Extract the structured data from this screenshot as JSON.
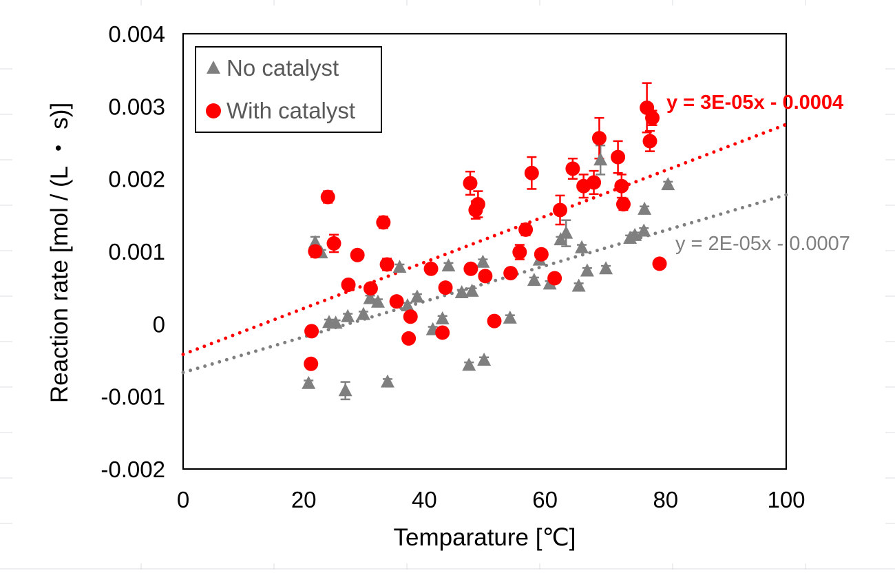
{
  "chart_data": {
    "type": "scatter",
    "title": "",
    "xlabel": "Temparature [℃]",
    "ylabel": "Reaction rate [mol / (L ・ s)]",
    "xlim": [
      0,
      100
    ],
    "ylim": [
      -0.002,
      0.004
    ],
    "x_ticks": [
      {
        "value": 0,
        "label": "0"
      },
      {
        "value": 20,
        "label": "20"
      },
      {
        "value": 40,
        "label": "40"
      },
      {
        "value": 60,
        "label": "60"
      },
      {
        "value": 80,
        "label": "80"
      },
      {
        "value": 100,
        "label": "100"
      }
    ],
    "y_ticks": [
      {
        "value": -0.002,
        "label": "-0.002"
      },
      {
        "value": -0.001,
        "label": "-0.001"
      },
      {
        "value": 0,
        "label": "0"
      },
      {
        "value": 0.001,
        "label": "0.001"
      },
      {
        "value": 0.002,
        "label": "0.002"
      },
      {
        "value": 0.003,
        "label": "0.003"
      },
      {
        "value": 0.004,
        "label": "0.004"
      }
    ],
    "grid": false,
    "legend": {
      "position": "top-left",
      "entries": [
        "No catalyst",
        "With catalyst"
      ]
    },
    "series": [
      {
        "name": "No catalyst",
        "marker": "triangle",
        "color": "#7f7f7f",
        "trendline": {
          "label": "y = 2E-05x - 0.0007",
          "slope": 2.45e-05,
          "intercept": -0.00067,
          "bold": false
        },
        "points": [
          {
            "x": 20.8,
            "y": -0.00082,
            "err": 4e-05
          },
          {
            "x": 21.9,
            "y": 0.00112,
            "err": 8e-05
          },
          {
            "x": 22.9,
            "y": 0.00098,
            "err": 4e-05
          },
          {
            "x": 24.2,
            "y": 2e-05,
            "err": 4e-05
          },
          {
            "x": 25.3,
            "y": 1e-05,
            "err": 4e-05
          },
          {
            "x": 26.9,
            "y": -0.00092,
            "err": 0.00012
          },
          {
            "x": 27.3,
            "y": 0.0001,
            "err": 4e-05
          },
          {
            "x": 29.9,
            "y": 0.00013,
            "err": 4e-05
          },
          {
            "x": 31.0,
            "y": 0.00035,
            "err": 4e-05
          },
          {
            "x": 32.3,
            "y": 0.0003,
            "err": 4e-05
          },
          {
            "x": 33.9,
            "y": -0.0008,
            "err": 4e-05
          },
          {
            "x": 35.9,
            "y": 0.00078,
            "err": 4e-05
          },
          {
            "x": 37.2,
            "y": 0.00025,
            "err": 4e-05
          },
          {
            "x": 38.8,
            "y": 0.00037,
            "err": 4e-05
          },
          {
            "x": 41.4,
            "y": -8e-05,
            "err": 4e-05
          },
          {
            "x": 43.0,
            "y": 7e-05,
            "err": 4e-05
          },
          {
            "x": 44.0,
            "y": 0.0008,
            "err": 4e-05
          },
          {
            "x": 46.2,
            "y": 0.00043,
            "err": 4e-05
          },
          {
            "x": 47.4,
            "y": -0.00057,
            "err": 4e-05
          },
          {
            "x": 47.9,
            "y": 0.00045,
            "err": 4e-05
          },
          {
            "x": 49.7,
            "y": 0.00085,
            "err": 4e-05
          },
          {
            "x": 49.9,
            "y": -0.0005,
            "err": 4e-05
          },
          {
            "x": 54.2,
            "y": 8e-05,
            "err": 4e-05
          },
          {
            "x": 58.2,
            "y": 0.0006,
            "err": 4e-05
          },
          {
            "x": 59.1,
            "y": 0.00088,
            "err": 4e-05
          },
          {
            "x": 60.8,
            "y": 0.00055,
            "err": 4e-05
          },
          {
            "x": 62.6,
            "y": 0.00116,
            "err": 4e-05
          },
          {
            "x": 63.5,
            "y": 0.00125,
            "err": 0.00018
          },
          {
            "x": 65.6,
            "y": 0.00052,
            "err": 4e-05
          },
          {
            "x": 66.1,
            "y": 0.00105,
            "err": 4e-05
          },
          {
            "x": 67.0,
            "y": 0.00073,
            "err": 4e-05
          },
          {
            "x": 69.2,
            "y": 0.00226,
            "err": 0.0002
          },
          {
            "x": 70.1,
            "y": 0.00076,
            "err": 4e-05
          },
          {
            "x": 74.1,
            "y": 0.00118,
            "err": 4e-05
          },
          {
            "x": 74.9,
            "y": 0.00122,
            "err": 4e-05
          },
          {
            "x": 76.4,
            "y": 0.00128,
            "err": 4e-05
          },
          {
            "x": 76.5,
            "y": 0.00158,
            "err": 4e-05
          },
          {
            "x": 80.4,
            "y": 0.00192,
            "err": 4e-05
          }
        ]
      },
      {
        "name": "With catalyst",
        "marker": "circle",
        "color": "#ff0000",
        "trendline": {
          "label": "y = 3E-05x - 0.0004",
          "slope": 3.17e-05,
          "intercept": -0.00042,
          "bold": true
        },
        "points": [
          {
            "x": 21.2,
            "y": -0.00055,
            "err": 0
          },
          {
            "x": 21.3,
            "y": -0.0001,
            "err": 0
          },
          {
            "x": 21.9,
            "y": 0.001,
            "err": 8e-05
          },
          {
            "x": 24.0,
            "y": 0.00175,
            "err": 8e-05
          },
          {
            "x": 25.0,
            "y": 0.00111,
            "err": 0.00012
          },
          {
            "x": 27.4,
            "y": 0.00054,
            "err": 0
          },
          {
            "x": 28.9,
            "y": 0.00095,
            "err": 0
          },
          {
            "x": 31.1,
            "y": 0.00049,
            "err": 6e-05
          },
          {
            "x": 33.2,
            "y": 0.0014,
            "err": 8e-05
          },
          {
            "x": 33.8,
            "y": 0.00082,
            "err": 8e-05
          },
          {
            "x": 35.4,
            "y": 0.00031,
            "err": 0
          },
          {
            "x": 37.4,
            "y": -0.0002,
            "err": 0
          },
          {
            "x": 37.7,
            "y": 0.0001,
            "err": 0
          },
          {
            "x": 41.1,
            "y": 0.00076,
            "err": 4e-05
          },
          {
            "x": 43.0,
            "y": -0.00012,
            "err": 0
          },
          {
            "x": 43.5,
            "y": 0.0005,
            "err": 0
          },
          {
            "x": 47.6,
            "y": 0.00194,
            "err": 0.00016
          },
          {
            "x": 47.7,
            "y": 0.00076,
            "err": 4e-05
          },
          {
            "x": 48.5,
            "y": 0.00157,
            "err": 0.00012
          },
          {
            "x": 48.9,
            "y": 0.00165,
            "err": 0.00018
          },
          {
            "x": 50.1,
            "y": 0.00066,
            "err": 0
          },
          {
            "x": 51.6,
            "y": 4e-05,
            "err": 0
          },
          {
            "x": 54.3,
            "y": 0.0007,
            "err": 0
          },
          {
            "x": 55.8,
            "y": 0.00099,
            "err": 0.0001
          },
          {
            "x": 56.8,
            "y": 0.0013,
            "err": 8e-05
          },
          {
            "x": 57.8,
            "y": 0.00208,
            "err": 0.00022
          },
          {
            "x": 59.4,
            "y": 0.00096,
            "err": 0
          },
          {
            "x": 61.6,
            "y": 0.00063,
            "err": 0
          },
          {
            "x": 62.5,
            "y": 0.00157,
            "err": 0.0002
          },
          {
            "x": 64.6,
            "y": 0.00214,
            "err": 0.00014
          },
          {
            "x": 66.4,
            "y": 0.0019,
            "err": 0.00016
          },
          {
            "x": 68.1,
            "y": 0.00195,
            "err": 0.00016
          },
          {
            "x": 69.0,
            "y": 0.00256,
            "err": 0.00028
          },
          {
            "x": 72.1,
            "y": 0.0023,
            "err": 0.00022
          },
          {
            "x": 72.7,
            "y": 0.0019,
            "err": 0.00016
          },
          {
            "x": 73.0,
            "y": 0.00165,
            "err": 8e-05
          },
          {
            "x": 76.9,
            "y": 0.00298,
            "err": 0.00034
          },
          {
            "x": 77.4,
            "y": 0.00252,
            "err": 0.00014
          },
          {
            "x": 77.8,
            "y": 0.00284,
            "err": 0.0001
          },
          {
            "x": 79.0,
            "y": 0.00083,
            "err": 6e-05
          }
        ]
      }
    ]
  }
}
